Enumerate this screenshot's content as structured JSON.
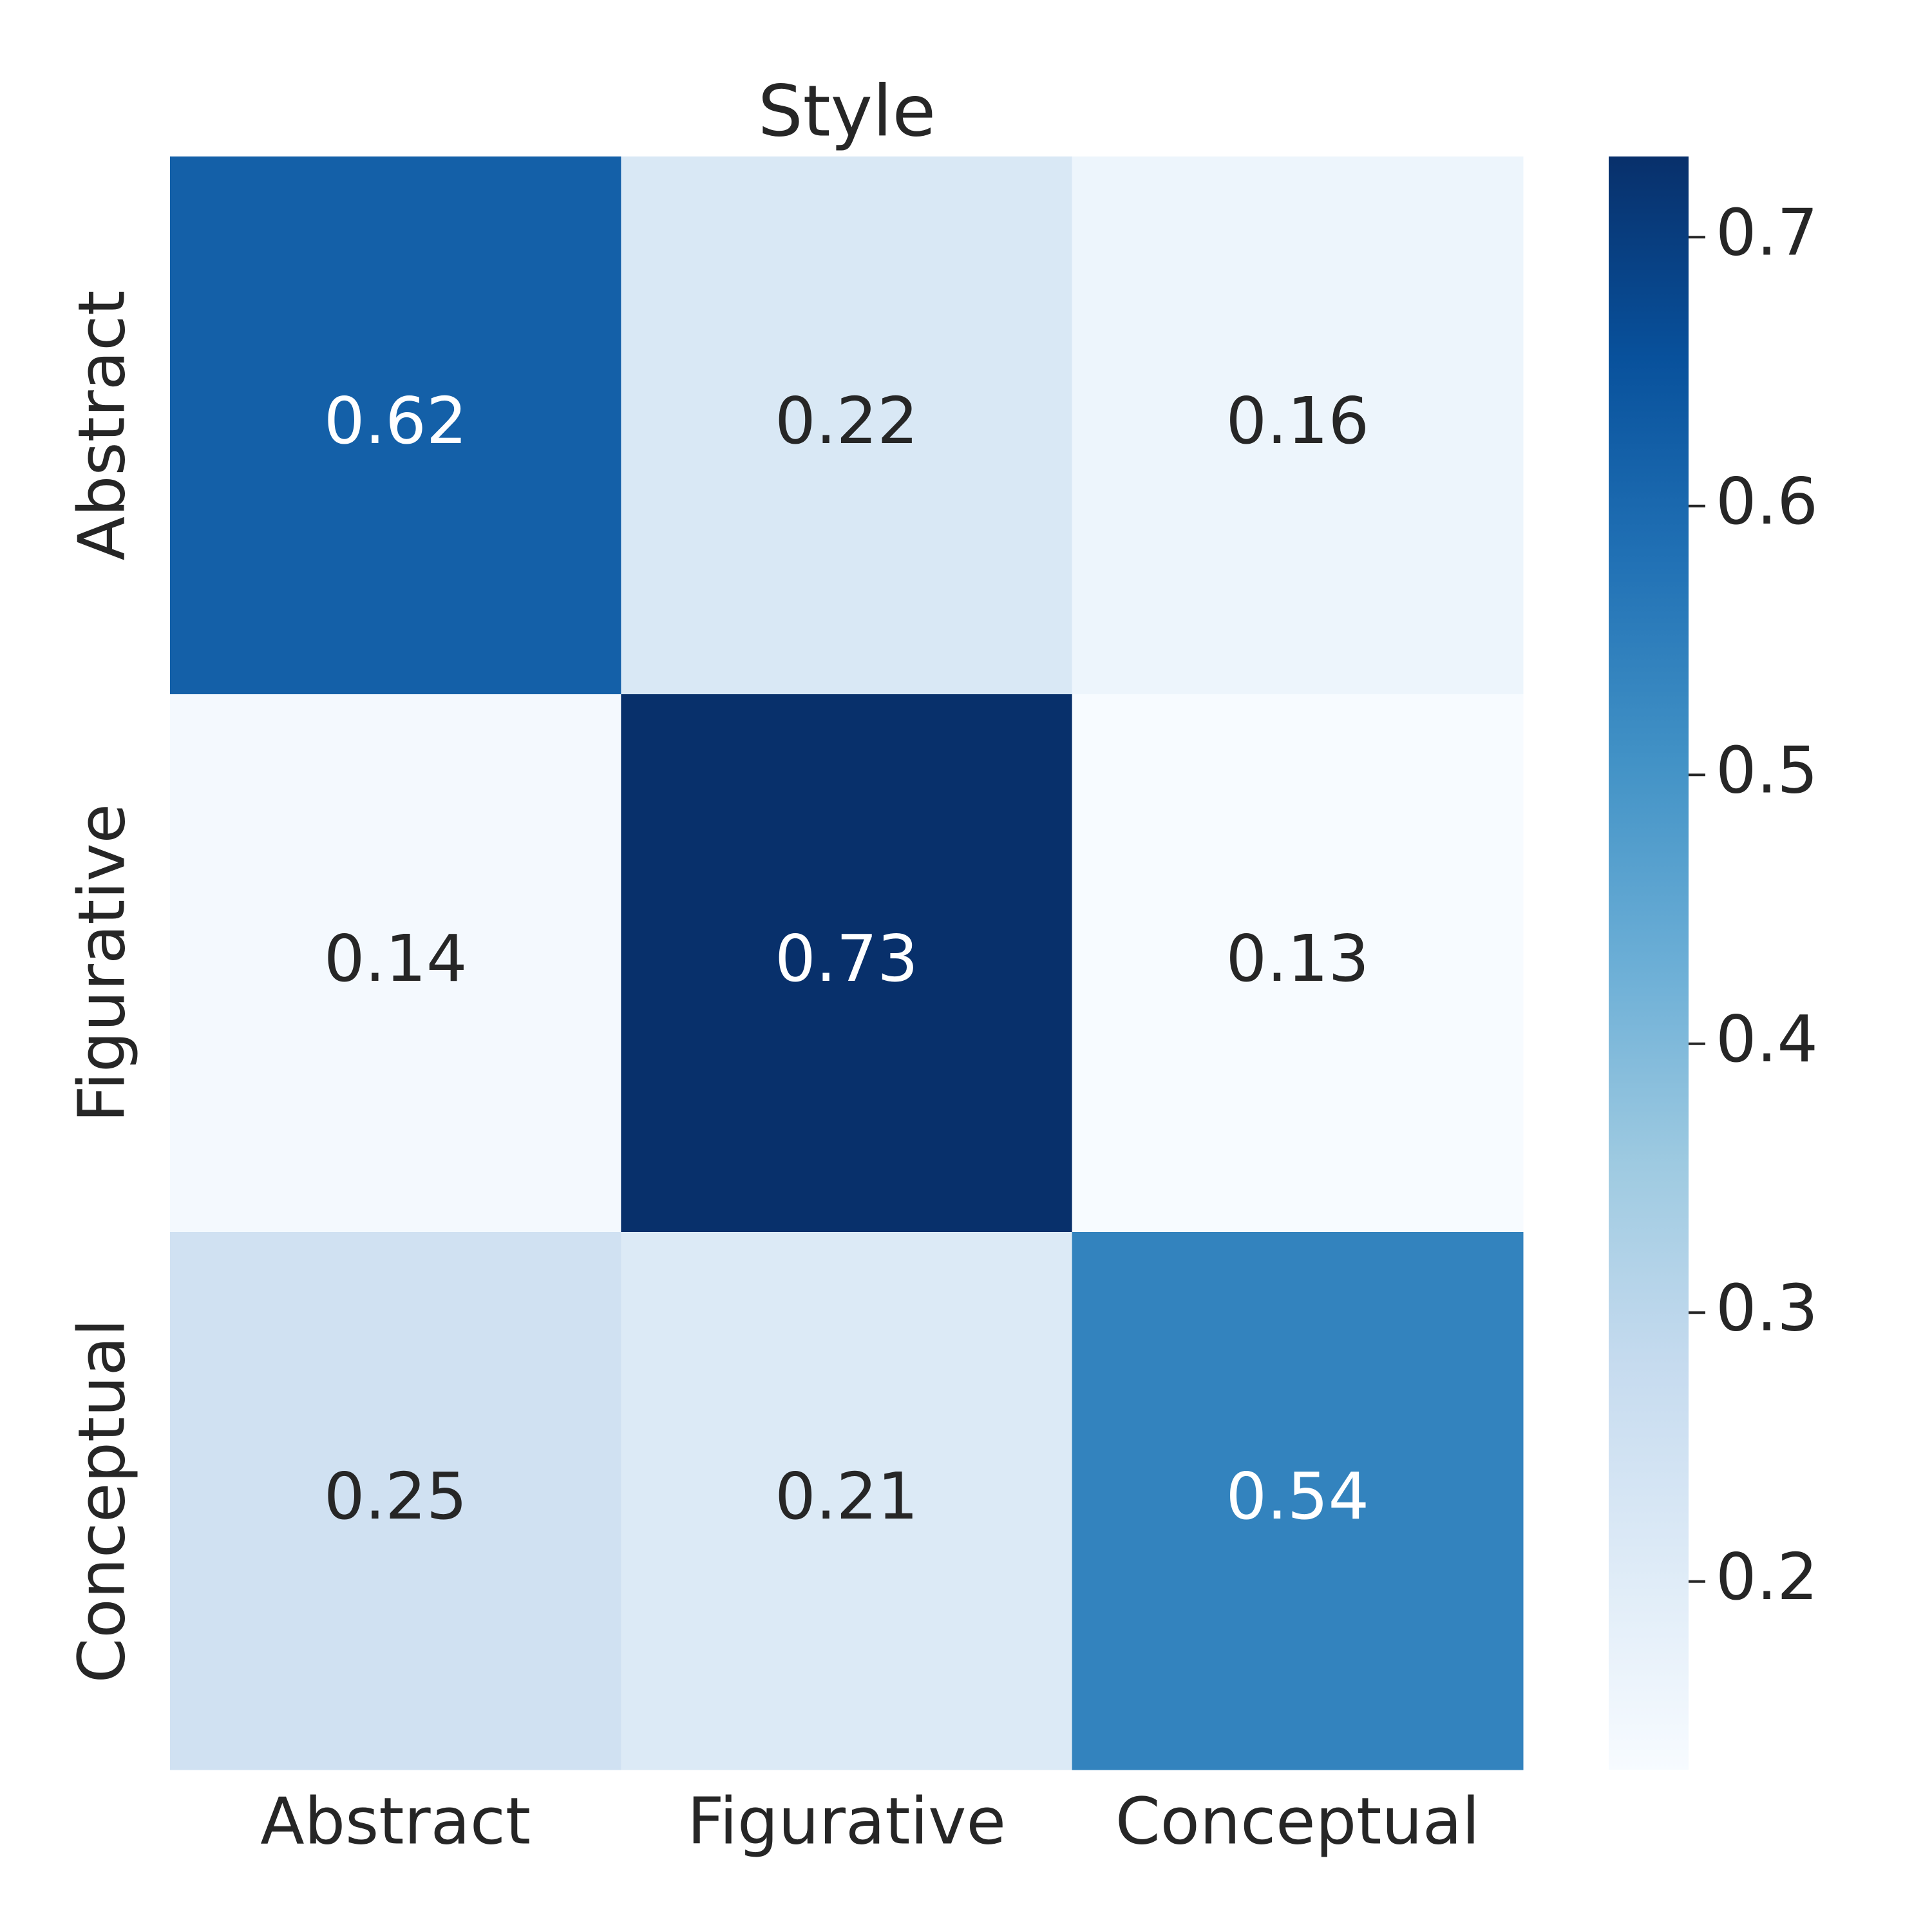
{
  "chart_data": {
    "type": "heatmap",
    "title": "Style",
    "xlabel": "",
    "ylabel": "",
    "x_categories": [
      "Abstract",
      "Figurative",
      "Conceptual"
    ],
    "y_categories": [
      "Abstract",
      "Figurative",
      "Conceptual"
    ],
    "values": [
      [
        0.62,
        0.22,
        0.16
      ],
      [
        0.14,
        0.73,
        0.13
      ],
      [
        0.25,
        0.21,
        0.54
      ]
    ],
    "annotations": [
      [
        "0.62",
        "0.22",
        "0.16"
      ],
      [
        "0.14",
        "0.73",
        "0.13"
      ],
      [
        "0.25",
        "0.21",
        "0.54"
      ]
    ],
    "colormap": "Blues",
    "colorbar": {
      "range": [
        0.13,
        0.73
      ],
      "ticks": [
        0.2,
        0.3,
        0.4,
        0.5,
        0.6,
        0.7
      ],
      "tick_labels": [
        "0.2",
        "0.3",
        "0.4",
        "0.5",
        "0.6",
        "0.7"
      ]
    },
    "colors": {
      "text_dark": "#262626",
      "text_light": "#ffffff"
    }
  }
}
